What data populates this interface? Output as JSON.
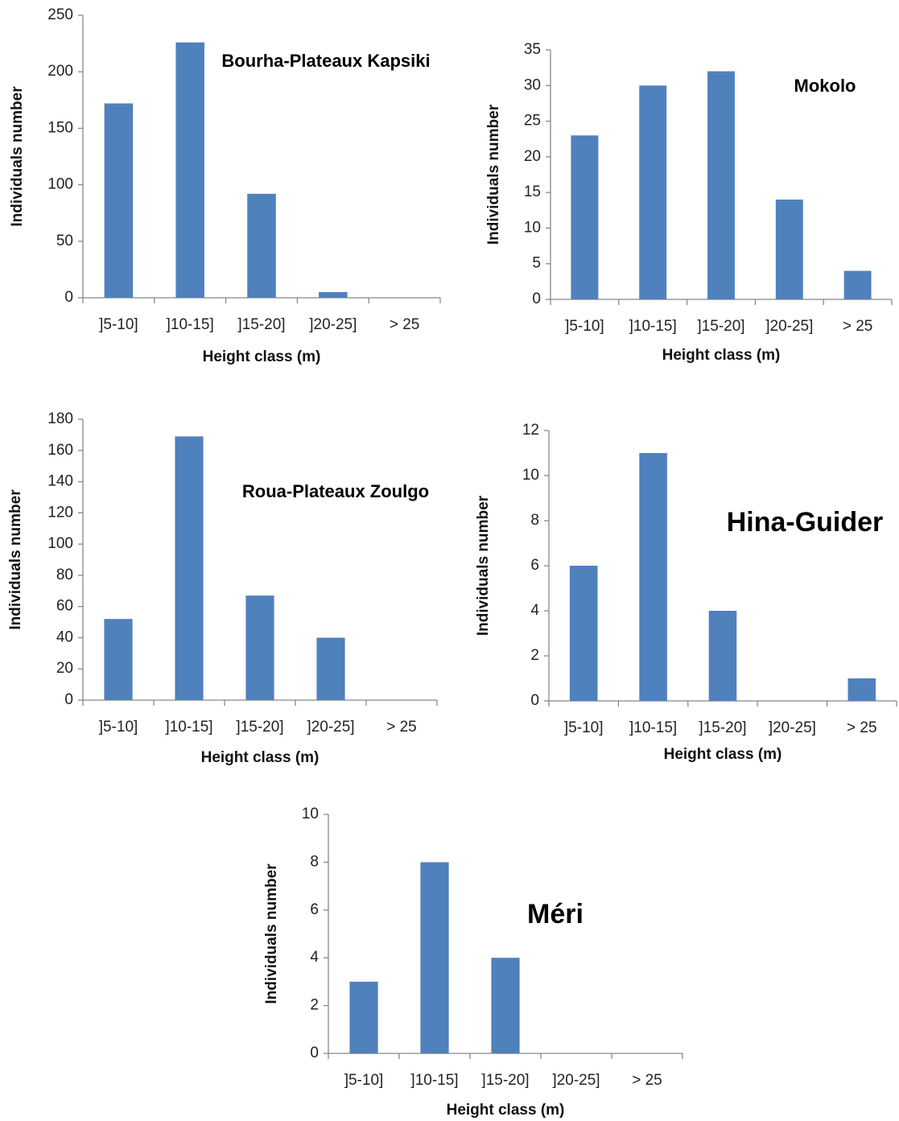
{
  "chart_data": [
    {
      "type": "bar",
      "title": "Bourha-Plateaux Kapsiki",
      "x_label": "Height class (m)",
      "y_label": "Individuals number",
      "categories": [
        "]5-10]",
        "]10-15]",
        "]15-20]",
        "]20-25]",
        "> 25"
      ],
      "values": [
        172,
        226,
        92,
        5,
        0
      ],
      "color": "#4f81bd",
      "ylim": [
        0,
        250
      ],
      "yticks": [
        0,
        50,
        100,
        150,
        200,
        250
      ]
    },
    {
      "type": "bar",
      "title": "Mokolo",
      "x_label": "Height class (m)",
      "y_label": "Individuals number",
      "categories": [
        "]5-10]",
        "]10-15]",
        "]15-20]",
        "]20-25]",
        "> 25"
      ],
      "values": [
        23,
        30,
        32,
        14,
        4
      ],
      "color": "#4f81bd",
      "ylim": [
        0,
        35
      ],
      "yticks": [
        0,
        5,
        10,
        15,
        20,
        25,
        30,
        35
      ]
    },
    {
      "type": "bar",
      "title": "Roua-Plateaux Zoulgo",
      "x_label": "Height class (m)",
      "y_label": "Individuals number",
      "categories": [
        "]5-10]",
        "]10-15]",
        "]15-20]",
        "]20-25]",
        "> 25"
      ],
      "values": [
        52,
        169,
        67,
        40,
        0
      ],
      "color": "#4f81bd",
      "ylim": [
        0,
        180
      ],
      "yticks": [
        0,
        20,
        40,
        60,
        80,
        100,
        120,
        140,
        160,
        180
      ]
    },
    {
      "type": "bar",
      "title": "Hina-Guider",
      "x_label": "Height class (m)",
      "y_label": "Individuals number",
      "categories": [
        "]5-10]",
        "]10-15]",
        "]15-20]",
        "]20-25]",
        "> 25"
      ],
      "values": [
        6,
        11,
        4,
        0,
        1
      ],
      "color": "#4f81bd",
      "ylim": [
        0,
        12
      ],
      "yticks": [
        0,
        2,
        4,
        6,
        8,
        10,
        12
      ]
    },
    {
      "type": "bar",
      "title": "Méri",
      "x_label": "Height class (m)",
      "y_label": "Individuals number",
      "categories": [
        "]5-10]",
        "]10-15]",
        "]15-20]",
        "]20-25]",
        "> 25"
      ],
      "values": [
        3,
        8,
        4,
        0,
        0
      ],
      "color": "#4f81bd",
      "ylim": [
        0,
        10
      ],
      "yticks": [
        0,
        2,
        4,
        6,
        8,
        10
      ]
    }
  ]
}
